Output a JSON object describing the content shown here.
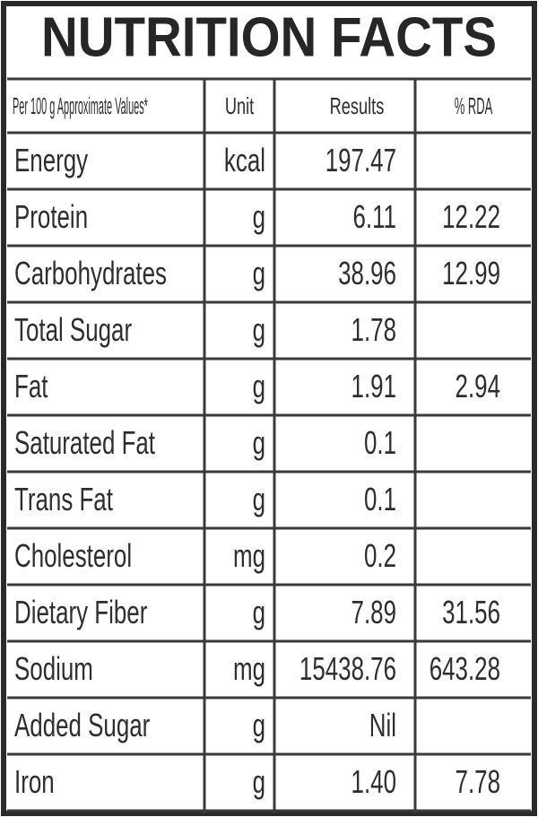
{
  "title": "NUTRITION FACTS",
  "table": {
    "header": [
      "Per 100 g Approximate Values*",
      "Unit",
      "Results",
      "% RDA"
    ],
    "rows": [
      [
        "Energy",
        "kcal",
        "197.47",
        null
      ],
      [
        "Protein",
        "g",
        "6.11",
        "12.22"
      ],
      [
        "Carbohydrates",
        "g",
        "38.96",
        "12.99"
      ],
      [
        "Total Sugar",
        "g",
        "1.78",
        null
      ],
      [
        "Fat",
        "g",
        "1.91",
        "2.94"
      ],
      [
        "Saturated Fat",
        "g",
        "0.1",
        null
      ],
      [
        "Trans Fat",
        "g",
        "0.1",
        null
      ],
      [
        "Cholesterol",
        "mg",
        "0.2",
        null
      ],
      [
        "Dietary Fiber",
        "g",
        "7.89",
        "31.56"
      ],
      [
        "Sodium",
        "mg",
        "15438.76",
        "643.28"
      ],
      [
        "Added Sugar",
        "g",
        "Nil",
        null
      ],
      [
        "Iron",
        "g",
        "1.40",
        "7.78"
      ]
    ]
  }
}
